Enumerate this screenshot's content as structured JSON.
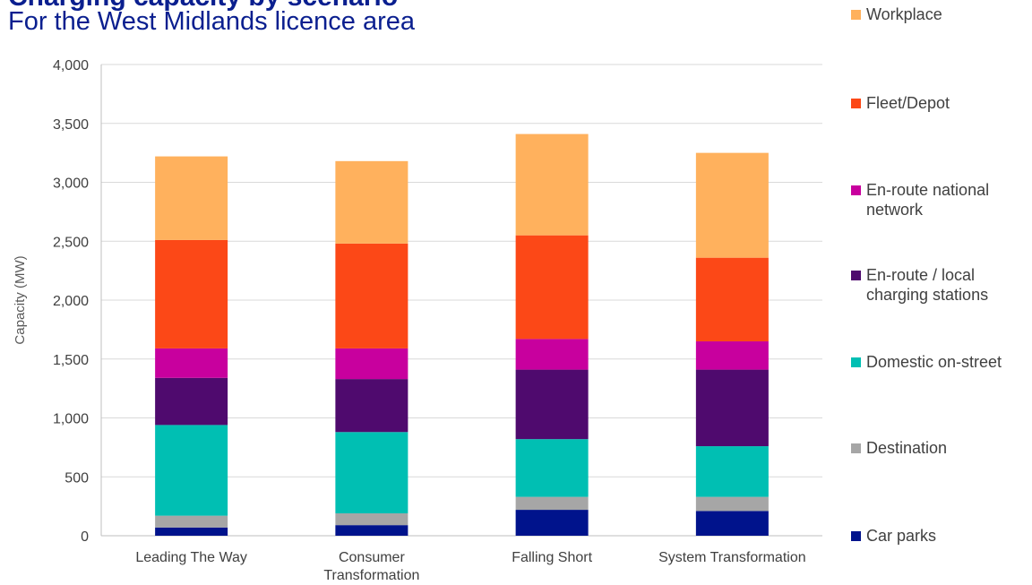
{
  "title": "Charging capacity by scenario",
  "subtitle": "For the West Midlands licence area",
  "chart_data": {
    "type": "bar",
    "stacked": true,
    "categories": [
      "Leading The Way",
      "Consumer\nTransformation",
      "Falling Short",
      "System Transformation"
    ],
    "ylabel": "Capacity (MW)",
    "ylim": [
      0,
      4000
    ],
    "yticks": [
      0,
      500,
      1000,
      1500,
      2000,
      2500,
      3000,
      3500,
      4000
    ],
    "ytick_labels": [
      "0",
      "500",
      "1,000",
      "1,500",
      "2,000",
      "2,500",
      "3,000",
      "3,500",
      "4,000"
    ],
    "grid": true,
    "legend_position": "right",
    "series": [
      {
        "name": "Car parks",
        "color": "#00138c",
        "values": [
          70,
          90,
          220,
          210
        ]
      },
      {
        "name": "Destination",
        "color": "#a6a6a6",
        "values": [
          100,
          100,
          110,
          120
        ]
      },
      {
        "name": "Domestic on-street",
        "color": "#00bfb3",
        "values": [
          770,
          690,
          490,
          430
        ]
      },
      {
        "name": "En-route / local\ncharging stations",
        "color": "#4f0a6e",
        "values": [
          400,
          450,
          590,
          650
        ]
      },
      {
        "name": "En-route national\nnetwork",
        "color": "#c8009e",
        "values": [
          250,
          260,
          260,
          240
        ]
      },
      {
        "name": "Fleet/Depot",
        "color": "#fc4817",
        "values": [
          920,
          890,
          880,
          710
        ]
      },
      {
        "name": "Workplace",
        "color": "#ffb15d",
        "values": [
          710,
          700,
          860,
          890
        ]
      }
    ]
  }
}
